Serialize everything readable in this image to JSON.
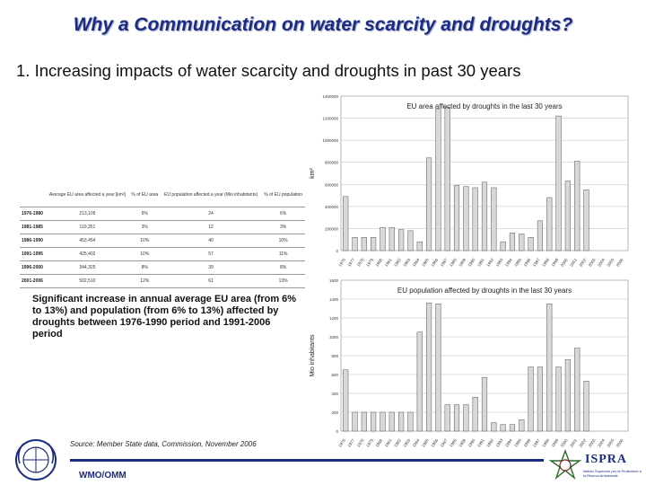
{
  "page": {
    "title": "Why a Communication on water scarcity and droughts?",
    "subtitle": "1. Increasing impacts of water scarcity and droughts in past 30 years",
    "note": "Significant increase in annual average EU area (from 6% to 13%) and population (from 6% to 13%) affected by droughts between 1976-1990 period and 1991-2006 period",
    "source": "Source: Member State data, Commission, November 2006",
    "footer_org": "WMO/OMM",
    "ispra_name": "ISPRA",
    "ispra_tagline": "Istituto Superiore per la Protezione e la Ricerca Ambientale"
  },
  "table": {
    "headers": [
      "",
      "Average EU area affected a year [km²]",
      "% of EU area",
      "EU population affected a year (Mio inhabitants)",
      "% of EU population"
    ],
    "rows": [
      [
        "1976-1980",
        "213,109",
        "6%",
        "24",
        "6%"
      ],
      [
        "1981-1985",
        "110,351",
        "3%",
        "12",
        "3%"
      ],
      [
        "1986-1990",
        "453,454",
        "10%",
        "40",
        "10%"
      ],
      [
        "1991-1995",
        "425,402",
        "10%",
        "57",
        "11%"
      ],
      [
        "1996-2000",
        "344,325",
        "8%",
        "39",
        "8%"
      ],
      [
        "2001-2006",
        "502,510",
        "12%",
        "61",
        "13%"
      ]
    ]
  },
  "colors": {
    "title": "#1c2c80",
    "bar": "#d8d8d8",
    "bar_stroke": "#555555",
    "grid": "#bdbdbd"
  },
  "chart_data": [
    {
      "type": "bar",
      "title": "EU area affected by droughts in the last 30 years",
      "ylabel": "km²",
      "xlabel": "",
      "ylim": [
        0,
        1400000
      ],
      "yticks": [
        0,
        200000,
        400000,
        600000,
        800000,
        1000000,
        1200000,
        1400000
      ],
      "grid": true,
      "categories": [
        "1976",
        "1977",
        "1978",
        "1979",
        "1980",
        "1981",
        "1982",
        "1983",
        "1984",
        "1985",
        "1986",
        "1987",
        "1988",
        "1989",
        "1990",
        "1991",
        "1992",
        "1993",
        "1994",
        "1995",
        "1996",
        "1997",
        "1998",
        "1999",
        "2000",
        "2001",
        "2002",
        "2003",
        "2004",
        "2005",
        "2006"
      ],
      "values": [
        490000,
        120000,
        120000,
        120000,
        210000,
        210000,
        190000,
        180000,
        80000,
        840000,
        1280000,
        1300000,
        590000,
        580000,
        570000,
        620000,
        570000,
        80000,
        160000,
        150000,
        120000,
        270000,
        480000,
        1220000,
        630000,
        810000,
        550000,
        0,
        0,
        0,
        0
      ]
    },
    {
      "type": "bar",
      "title": "EU population affected by droughts in the last 30 years",
      "ylabel": "Mio inhabitants",
      "xlabel": "",
      "ylim": [
        0,
        1600
      ],
      "yticks": [
        0,
        200,
        400,
        600,
        800,
        1000,
        1200,
        1400,
        1600
      ],
      "grid": true,
      "categories": [
        "1976",
        "1977",
        "1978",
        "1979",
        "1980",
        "1981",
        "1982",
        "1983",
        "1984",
        "1985",
        "1986",
        "1987",
        "1988",
        "1989",
        "1990",
        "1991",
        "1992",
        "1993",
        "1994",
        "1995",
        "1996",
        "1997",
        "1998",
        "1999",
        "2000",
        "2001",
        "2002",
        "2003",
        "2004",
        "2005",
        "2006"
      ],
      "values": [
        650,
        200,
        200,
        200,
        200,
        200,
        200,
        200,
        1050,
        1360,
        1350,
        280,
        280,
        280,
        360,
        570,
        90,
        70,
        70,
        120,
        680,
        680,
        1350,
        680,
        760,
        880,
        530,
        0,
        0,
        0,
        0
      ]
    }
  ]
}
